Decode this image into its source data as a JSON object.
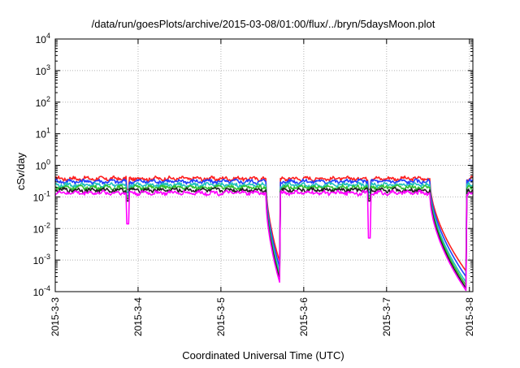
{
  "chart_data": {
    "type": "line",
    "title": "/data/run/goesPlots/archive/2015-03-08/01:00/flux/../bryn/5daysMoon.plot",
    "xlabel": "Coordinated Universal Time (UTC)",
    "ylabel": "cSv/day",
    "x_range": [
      "2015-3-3",
      "2015-3-8 01:00"
    ],
    "x_tick_labels": [
      "2015-3-3",
      "2015-3-4",
      "2015-3-5",
      "2015-3-6",
      "2015-3-7",
      "2015-3-8"
    ],
    "y_scale": "log",
    "y_range": [
      0.0001,
      10000
    ],
    "y_tick_labels": [
      {
        "base": "10",
        "exp": "4"
      },
      {
        "base": "10",
        "exp": "3"
      },
      {
        "base": "10",
        "exp": "2"
      },
      {
        "base": "10",
        "exp": "1"
      },
      {
        "base": "10",
        "exp": "0"
      },
      {
        "base": "10",
        "exp": "-1"
      },
      {
        "base": "10",
        "exp": "-2"
      },
      {
        "base": "10",
        "exp": "-3"
      },
      {
        "base": "10",
        "exp": "-4"
      }
    ],
    "grid": true,
    "series": [
      {
        "color": "#ff2020",
        "baseline": 0.38,
        "dropmin": [
          0.0009,
          0.00045
        ]
      },
      {
        "color": "#2040ff",
        "baseline": 0.31,
        "dropmin": [
          0.0006,
          0.0003
        ]
      },
      {
        "color": "#20c0c0",
        "baseline": 0.24,
        "dropmin": [
          0.0004,
          0.0002
        ]
      },
      {
        "color": "#30c030",
        "baseline": 0.2,
        "dropmin": [
          0.0003,
          0.00016
        ]
      },
      {
        "color": "#202020",
        "baseline": 0.165,
        "dropmin": [
          0.00025,
          0.00013
        ]
      },
      {
        "color": "#ff00ff",
        "baseline": 0.135,
        "dropmin": [
          0.0002,
          0.00011
        ]
      }
    ],
    "dips": [
      {
        "date": "2015-3-3 21:00",
        "min": 0.014
      },
      {
        "date": "2015-3-6 19:00",
        "min": 0.005
      }
    ]
  }
}
